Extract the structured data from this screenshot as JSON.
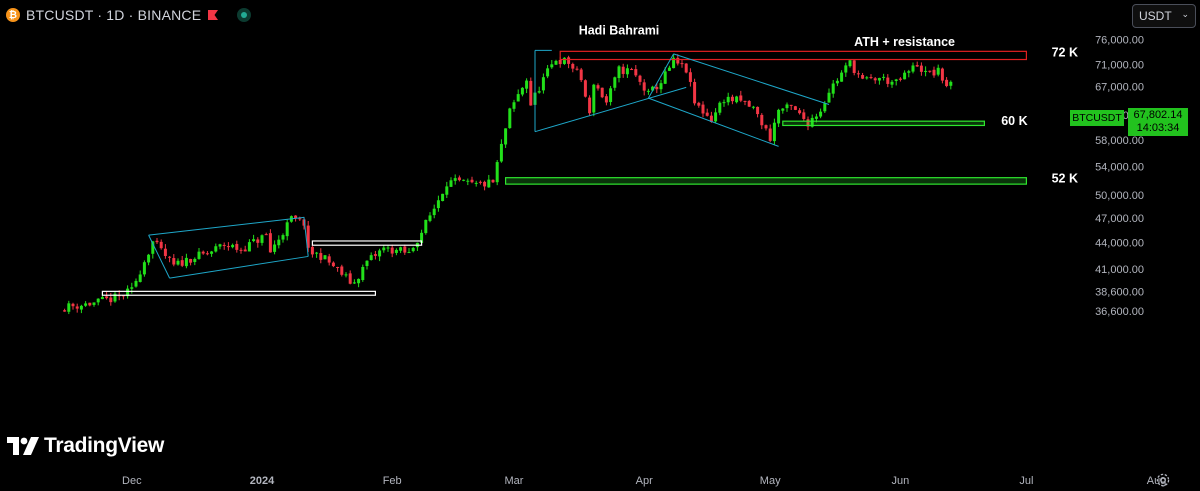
{
  "header": {
    "coin_glyph": "₿",
    "symbol_line": "BTCUSDT · 1D · BINANCE",
    "flag_color": "#f23645",
    "live_color": "#22ab94"
  },
  "currency_select": {
    "value": "USDT",
    "chevron": "⌄"
  },
  "last_price": {
    "symbol": "BTCUSDT",
    "price": "67,802.14",
    "countdown": "14:03:34",
    "color": "#22c21e"
  },
  "branding": {
    "logo_text": "TradingView"
  },
  "colors": {
    "up": "#22e01a",
    "down": "#f23645",
    "channel": "#1ea7c9",
    "zone_red": "#e02020",
    "zone_green": "#2ee62e",
    "zone_white": "#ffffff",
    "background": "#000000"
  },
  "chart_data": {
    "type": "candlestick",
    "title": "",
    "y_axis": {
      "scale": "log",
      "ticks": [
        76000,
        71000,
        67000,
        62000,
        58000,
        54000,
        50000,
        47000,
        44000,
        41000,
        38600,
        36600
      ],
      "tick_labels": [
        "76,000.00",
        "71,000.00",
        "67,000.00",
        "62,000.00",
        "58,000.00",
        "54,000.00",
        "50,000.00",
        "47,000.00",
        "44,000.00",
        "41,000.00",
        "38,600.00",
        "36,600.00"
      ]
    },
    "x_axis": {
      "start": "2023-11-15",
      "end": "2024-08-31",
      "ticks": [
        {
          "date": "2023-12-01",
          "label": "Dec"
        },
        {
          "date": "2024-01-01",
          "label": "2024"
        },
        {
          "date": "2024-02-01",
          "label": "Feb"
        },
        {
          "date": "2024-03-01",
          "label": "Mar"
        },
        {
          "date": "2024-04-01",
          "label": "Apr"
        },
        {
          "date": "2024-05-01",
          "label": "May"
        },
        {
          "date": "2024-06-01",
          "label": "Jun"
        },
        {
          "date": "2024-07-01",
          "label": "Jul"
        },
        {
          "date": "2024-08-01",
          "label": "Aug"
        }
      ]
    },
    "close_anchors": [
      [
        "2023-11-15",
        37000
      ],
      [
        "2023-11-22",
        37400
      ],
      [
        "2023-11-28",
        38000
      ],
      [
        "2023-12-01",
        38700
      ],
      [
        "2023-12-04",
        41900
      ],
      [
        "2023-12-06",
        44100
      ],
      [
        "2023-12-11",
        41300
      ],
      [
        "2023-12-15",
        42200
      ],
      [
        "2023-12-19",
        42700
      ],
      [
        "2023-12-23",
        43800
      ],
      [
        "2023-12-27",
        43200
      ],
      [
        "2024-01-02",
        44900
      ],
      [
        "2024-01-03",
        42900
      ],
      [
        "2024-01-08",
        46900
      ],
      [
        "2024-01-11",
        46400
      ],
      [
        "2024-01-12",
        42900
      ],
      [
        "2024-01-15",
        42500
      ],
      [
        "2024-01-18",
        41300
      ],
      [
        "2024-01-22",
        39600
      ],
      [
        "2024-01-23",
        39500
      ],
      [
        "2024-01-26",
        41800
      ],
      [
        "2024-01-30",
        43300
      ],
      [
        "2024-02-03",
        43000
      ],
      [
        "2024-02-05",
        42700
      ],
      [
        "2024-02-08",
        45300
      ],
      [
        "2024-02-11",
        48300
      ],
      [
        "2024-02-14",
        51800
      ],
      [
        "2024-02-17",
        51700
      ],
      [
        "2024-02-21",
        51300
      ],
      [
        "2024-02-25",
        51700
      ],
      [
        "2024-02-27",
        57000
      ],
      [
        "2024-02-29",
        62500
      ],
      [
        "2024-03-04",
        68300
      ],
      [
        "2024-03-05",
        63800
      ],
      [
        "2024-03-08",
        68300
      ],
      [
        "2024-03-11",
        72100
      ],
      [
        "2024-03-14",
        71400
      ],
      [
        "2024-03-17",
        68300
      ],
      [
        "2024-03-19",
        61900
      ],
      [
        "2024-03-20",
        67800
      ],
      [
        "2024-03-23",
        64100
      ],
      [
        "2024-03-26",
        70000
      ],
      [
        "2024-03-29",
        69800
      ],
      [
        "2024-04-02",
        65500
      ],
      [
        "2024-04-05",
        67800
      ],
      [
        "2024-04-08",
        71600
      ],
      [
        "2024-04-11",
        70000
      ],
      [
        "2024-04-13",
        64000
      ],
      [
        "2024-04-17",
        61300
      ],
      [
        "2024-04-20",
        64900
      ],
      [
        "2024-04-24",
        64300
      ],
      [
        "2024-04-27",
        63100
      ],
      [
        "2024-05-01",
        58300
      ],
      [
        "2024-05-03",
        62900
      ],
      [
        "2024-05-06",
        63200
      ],
      [
        "2024-05-10",
        60800
      ],
      [
        "2024-05-13",
        62900
      ],
      [
        "2024-05-15",
        66200
      ],
      [
        "2024-05-20",
        71400
      ],
      [
        "2024-05-23",
        67900
      ],
      [
        "2024-05-27",
        68500
      ],
      [
        "2024-05-31",
        67500
      ],
      [
        "2024-06-05",
        71100
      ],
      [
        "2024-06-07",
        69300
      ],
      [
        "2024-06-10",
        69600
      ],
      [
        "2024-06-12",
        67300
      ],
      [
        "2024-06-13",
        67802
      ]
    ],
    "annotations": {
      "title_text": "Hadi Bahrami",
      "ath_text": "ATH + resistance",
      "labels": {
        "k72": "72 K",
        "k60": "60 K",
        "k52": "52 K"
      },
      "zones": [
        {
          "name": "ath-resistance-zone",
          "color": "red",
          "from": "2024-03-12",
          "to": "2024-07-01",
          "low": 72000,
          "high": 73600
        },
        {
          "name": "support-60k-zone",
          "color": "green",
          "from": "2024-05-04",
          "to": "2024-06-21",
          "low": 60300,
          "high": 61000
        },
        {
          "name": "support-52k-zone",
          "color": "green",
          "from": "2024-02-28",
          "to": "2024-07-01",
          "low": 51500,
          "high": 52400
        },
        {
          "name": "support-44k-zone",
          "color": "white",
          "from": "2024-01-13",
          "to": "2024-02-08",
          "low": 43700,
          "high": 44200
        },
        {
          "name": "support-38k-zone",
          "color": "white",
          "from": "2023-11-24",
          "to": "2024-01-28",
          "low": 38200,
          "high": 38600
        }
      ],
      "channels": [
        {
          "name": "dec-channel",
          "lines": [
            [
              [
                "2023-12-05",
                44900
              ],
              [
                "2024-01-11",
                47100
              ]
            ],
            [
              [
                "2023-12-10",
                40000
              ],
              [
                "2024-01-12",
                42400
              ]
            ],
            [
              [
                "2023-12-05",
                44900
              ],
              [
                "2023-12-10",
                40000
              ]
            ],
            [
              [
                "2024-01-11",
                47100
              ],
              [
                "2024-01-12",
                42400
              ]
            ]
          ]
        },
        {
          "name": "march-triangle",
          "lines": [
            [
              [
                "2024-03-06",
                59300
              ],
              [
                "2024-04-11",
                66800
              ]
            ],
            [
              [
                "2024-03-06",
                59300
              ],
              [
                "2024-03-06",
                73800
              ]
            ],
            [
              [
                "2024-03-06",
                73800
              ],
              [
                "2024-03-10",
                73800
              ]
            ]
          ]
        },
        {
          "name": "april-channel",
          "lines": [
            [
              [
                "2024-04-08",
                73100
              ],
              [
                "2024-05-15",
                63800
              ]
            ],
            [
              [
                "2024-04-02",
                64900
              ],
              [
                "2024-05-03",
                57000
              ]
            ],
            [
              [
                "2024-04-02",
                64900
              ],
              [
                "2024-04-08",
                73100
              ]
            ]
          ]
        }
      ]
    }
  }
}
